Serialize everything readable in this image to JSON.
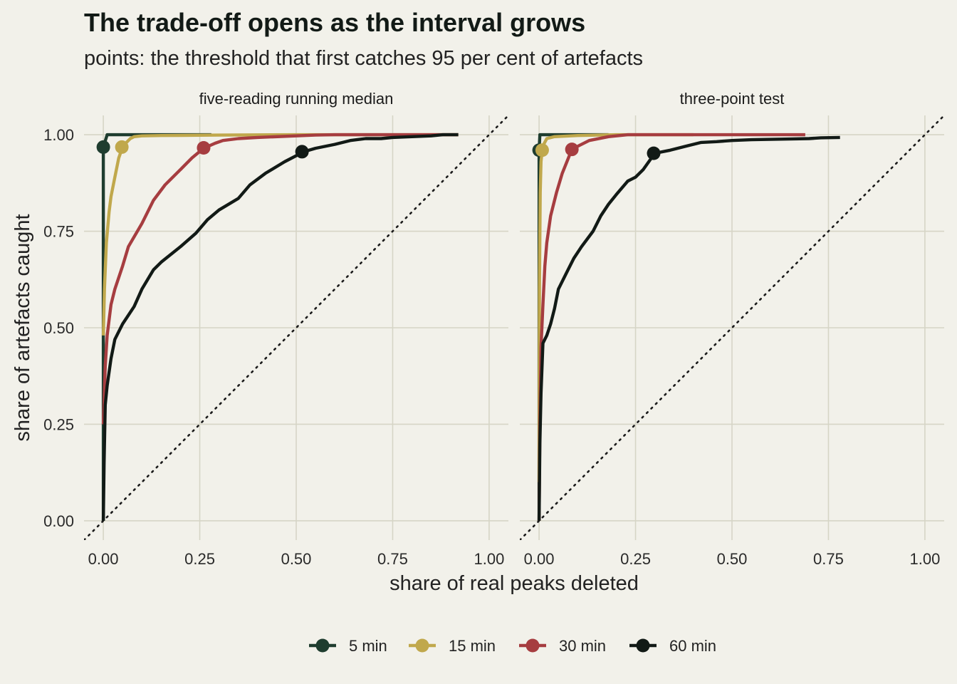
{
  "chart_data": {
    "type": "line",
    "title": "The trade-off opens as the interval grows",
    "subtitle": "points: the threshold that first catches 95 per cent of artefacts",
    "xlabel": "share of real peaks deleted",
    "ylabel": "share of artefacts caught",
    "xlim": [
      -0.05,
      1.05
    ],
    "ylim": [
      -0.05,
      1.05
    ],
    "xticks": [
      "0.00",
      "0.25",
      "0.50",
      "0.75",
      "1.00"
    ],
    "yticks": [
      "0.00",
      "0.25",
      "0.50",
      "0.75",
      "1.00"
    ],
    "grid": true,
    "reference_line": "diagonal dotted y = x",
    "legend": {
      "position": "bottom",
      "entries": [
        "5 min",
        "15 min",
        "30 min",
        "60 min"
      ]
    },
    "colors": {
      "5 min": "#1f3d2f",
      "15 min": "#c0a84c",
      "30 min": "#a63d40",
      "60 min": "#121a16"
    },
    "panels": [
      {
        "name": "five-reading running median",
        "series": [
          {
            "name": "5 min",
            "x": [
              0,
              0,
              0,
              0,
              0.01,
              0.05,
              0.1,
              0.2,
              0.28
            ],
            "y": [
              0,
              0.5,
              0.9,
              0.968,
              1.0,
              1.0,
              1.0,
              1.0,
              1.0
            ],
            "point": [
              0.0,
              0.968
            ]
          },
          {
            "name": "15 min",
            "x": [
              0,
              0.003,
              0.008,
              0.015,
              0.02,
              0.03,
              0.04,
              0.05,
              0.06,
              0.07,
              0.08,
              0.1,
              0.15,
              0.3,
              0.5,
              0.7,
              0.9,
              0.92
            ],
            "y": [
              0.48,
              0.6,
              0.72,
              0.8,
              0.84,
              0.89,
              0.94,
              0.968,
              0.98,
              0.99,
              0.995,
              0.997,
              0.998,
              0.999,
              1.0,
              1.0,
              1.0,
              1.0
            ],
            "point": [
              0.048,
              0.968
            ]
          },
          {
            "name": "30 min",
            "x": [
              0,
              0.005,
              0.01,
              0.02,
              0.03,
              0.05,
              0.065,
              0.1,
              0.13,
              0.16,
              0.2,
              0.23,
              0.26,
              0.29,
              0.31,
              0.35,
              0.4,
              0.5,
              0.55,
              0.6,
              0.7,
              0.8,
              0.9,
              0.92
            ],
            "y": [
              0.25,
              0.4,
              0.48,
              0.56,
              0.6,
              0.66,
              0.71,
              0.77,
              0.83,
              0.87,
              0.91,
              0.94,
              0.965,
              0.978,
              0.985,
              0.99,
              0.993,
              0.997,
              0.999,
              1.0,
              1.0,
              1.0,
              1.0,
              1.0
            ],
            "point": [
              0.26,
              0.966
            ]
          },
          {
            "name": "60 min",
            "x": [
              0,
              0.002,
              0.005,
              0.01,
              0.02,
              0.03,
              0.05,
              0.08,
              0.1,
              0.13,
              0.15,
              0.2,
              0.24,
              0.27,
              0.3,
              0.35,
              0.38,
              0.42,
              0.47,
              0.52,
              0.55,
              0.6,
              0.64,
              0.68,
              0.72,
              0.75,
              0.8,
              0.85,
              0.88,
              0.92
            ],
            "y": [
              0,
              0.15,
              0.3,
              0.35,
              0.42,
              0.47,
              0.51,
              0.555,
              0.6,
              0.65,
              0.67,
              0.71,
              0.745,
              0.78,
              0.805,
              0.835,
              0.87,
              0.9,
              0.93,
              0.956,
              0.965,
              0.975,
              0.985,
              0.99,
              0.99,
              0.993,
              0.995,
              0.997,
              1.0,
              1.0
            ],
            "point": [
              0.515,
              0.956
            ]
          }
        ]
      },
      {
        "name": "three-point test",
        "series": [
          {
            "name": "5 min",
            "x": [
              0,
              0,
              0,
              0,
              0.002,
              0.02,
              0.1,
              0.18
            ],
            "y": [
              0,
              0.5,
              0.9,
              0.96,
              1.0,
              1.0,
              1.0,
              1.0
            ],
            "point": [
              0.0,
              0.96
            ]
          },
          {
            "name": "15 min",
            "x": [
              0,
              0.001,
              0.003,
              0.005,
              0.008,
              0.012,
              0.02,
              0.04,
              0.1,
              0.2,
              0.3,
              0.4
            ],
            "y": [
              0.1,
              0.6,
              0.85,
              0.93,
              0.96,
              0.975,
              0.99,
              0.995,
              0.998,
              1.0,
              1.0,
              1.0
            ],
            "point": [
              0.008,
              0.96
            ]
          },
          {
            "name": "30 min",
            "x": [
              0,
              0.002,
              0.005,
              0.01,
              0.015,
              0.02,
              0.03,
              0.045,
              0.06,
              0.085,
              0.1,
              0.13,
              0.18,
              0.23,
              0.3,
              0.4,
              0.5,
              0.6,
              0.69
            ],
            "y": [
              0,
              0.25,
              0.45,
              0.56,
              0.66,
              0.72,
              0.79,
              0.85,
              0.9,
              0.962,
              0.97,
              0.985,
              0.995,
              1.0,
              1.0,
              1.0,
              1.0,
              1.0,
              1.0
            ],
            "point": [
              0.085,
              0.962
            ]
          },
          {
            "name": "60 min",
            "x": [
              0,
              0.002,
              0.005,
              0.01,
              0.02,
              0.03,
              0.04,
              0.05,
              0.07,
              0.09,
              0.11,
              0.14,
              0.16,
              0.18,
              0.2,
              0.23,
              0.25,
              0.27,
              0.3,
              0.34,
              0.38,
              0.42,
              0.46,
              0.5,
              0.55,
              0.6,
              0.65,
              0.7,
              0.73,
              0.78
            ],
            "y": [
              0,
              0.2,
              0.33,
              0.46,
              0.48,
              0.51,
              0.55,
              0.6,
              0.64,
              0.68,
              0.71,
              0.75,
              0.79,
              0.82,
              0.845,
              0.88,
              0.89,
              0.91,
              0.952,
              0.96,
              0.97,
              0.98,
              0.982,
              0.985,
              0.987,
              0.988,
              0.989,
              0.99,
              0.992,
              0.993
            ],
            "point": [
              0.297,
              0.952
            ]
          }
        ]
      }
    ]
  }
}
